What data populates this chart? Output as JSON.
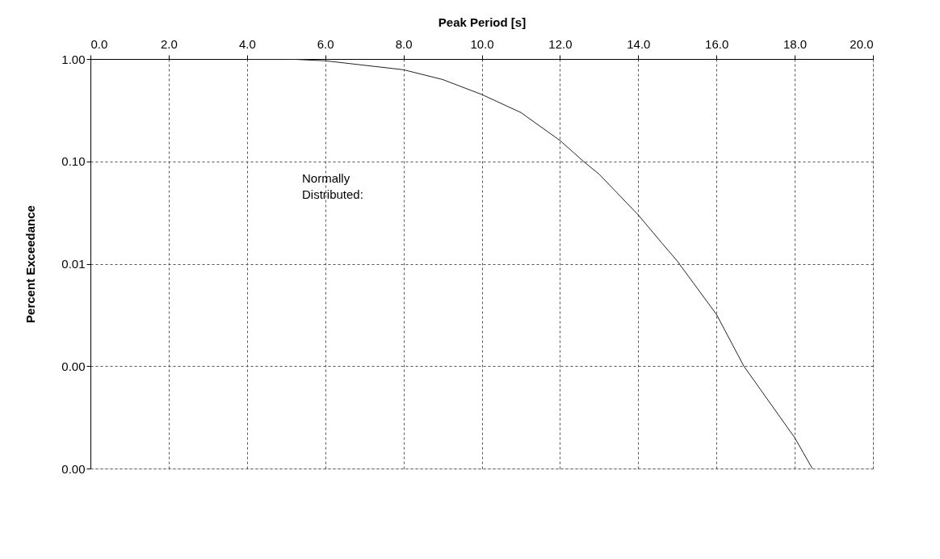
{
  "chart_data": {
    "type": "line",
    "xlabel": "Peak Period [s]",
    "ylabel": "Percent Exceedance",
    "annotations": [
      "Normally\nDistributed:"
    ],
    "x": [
      4.0,
      5.0,
      6.0,
      8.0,
      9.0,
      10.0,
      11.0,
      12.0,
      12.6,
      13.0,
      14.0,
      14.6,
      15.0,
      16.0,
      16.7,
      18.0,
      18.45
    ],
    "series": [
      {
        "color": "#222222",
        "values": [
          1.0,
          1.0,
          0.96,
          0.785,
          0.63,
          0.45,
          0.3,
          0.16,
          0.1,
          0.075,
          0.03,
          0.016,
          0.0106,
          0.0032,
          0.001,
          0.0002,
          0.0001
        ]
      }
    ],
    "log": "y",
    "grid": true,
    "marker": "none",
    "line_style": "solid",
    "xlim": [
      0.0,
      20.0
    ],
    "xticks": [
      {
        "value": 0,
        "label": "0.0"
      },
      {
        "value": 2,
        "label": "2.0"
      },
      {
        "value": 4,
        "label": "4.0"
      },
      {
        "value": 6,
        "label": "6.0"
      },
      {
        "value": 8,
        "label": "8.0"
      },
      {
        "value": 10,
        "label": "10.0"
      },
      {
        "value": 12,
        "label": "12.0"
      },
      {
        "value": 14,
        "label": "14.0"
      },
      {
        "value": 16,
        "label": "16.0"
      },
      {
        "value": 18,
        "label": "18.0"
      },
      {
        "value": 20,
        "label": "20.0"
      }
    ],
    "ylim": [
      0.0001,
      1.0
    ],
    "yticks": [
      {
        "value": 1.0,
        "label": "1.00"
      },
      {
        "value": 0.1,
        "label": "0.10"
      },
      {
        "value": 0.01,
        "label": "0.01"
      },
      {
        "value": 0.001,
        "label": "0.00"
      },
      {
        "value": 0.0001,
        "label": "0.00"
      }
    ]
  }
}
